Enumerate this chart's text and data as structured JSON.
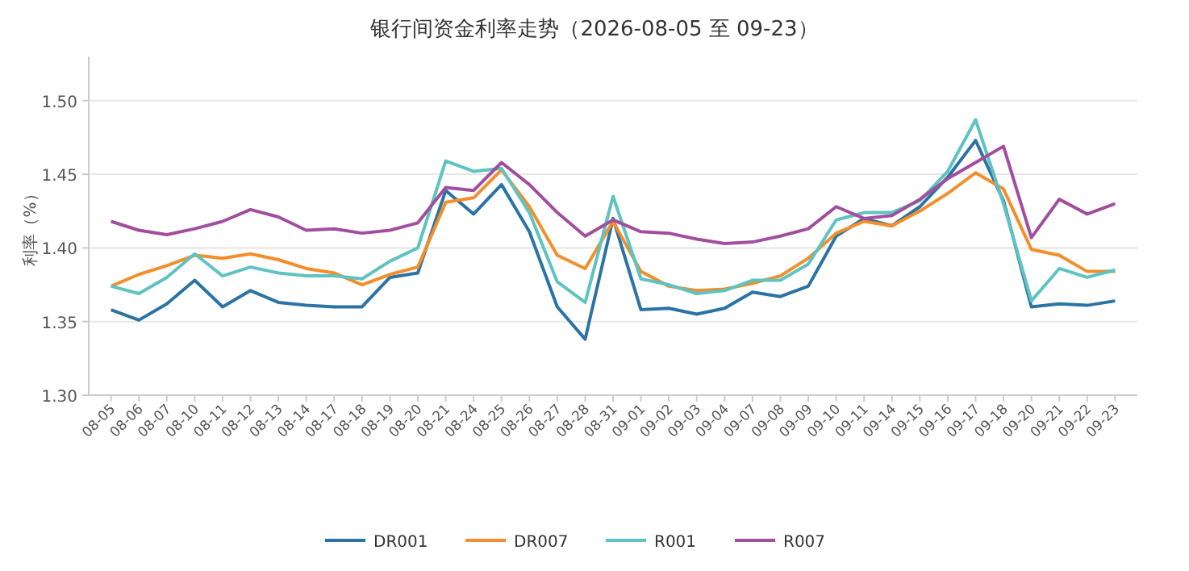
{
  "chart_data": {
    "type": "line",
    "title": "银行间资金利率走势（2026-08-05 至 09-23）",
    "ylabel": "利率（%）",
    "categories": [
      "08-05",
      "08-06",
      "08-07",
      "08-10",
      "08-11",
      "08-12",
      "08-13",
      "08-14",
      "08-17",
      "08-18",
      "08-19",
      "08-20",
      "08-21",
      "08-24",
      "08-25",
      "08-26",
      "08-27",
      "08-28",
      "08-31",
      "09-01",
      "09-02",
      "09-03",
      "09-04",
      "09-07",
      "09-08",
      "09-09",
      "09-10",
      "09-11",
      "09-14",
      "09-15",
      "09-16",
      "09-17",
      "09-18",
      "09-20",
      "09-21",
      "09-22",
      "09-23"
    ],
    "series": [
      {
        "name": "DR001",
        "color": "#2b73a5",
        "values": [
          1.358,
          1.351,
          1.362,
          1.378,
          1.36,
          1.371,
          1.363,
          1.361,
          1.36,
          1.36,
          1.38,
          1.383,
          1.439,
          1.423,
          1.443,
          1.411,
          1.36,
          1.338,
          1.42,
          1.358,
          1.359,
          1.355,
          1.359,
          1.37,
          1.367,
          1.374,
          1.408,
          1.42,
          1.415,
          1.428,
          1.448,
          1.473,
          1.432,
          1.36,
          1.362,
          1.361,
          1.364
        ]
      },
      {
        "name": "DR007",
        "color": "#f28e2b",
        "values": [
          1.374,
          1.382,
          1.388,
          1.395,
          1.393,
          1.396,
          1.392,
          1.386,
          1.383,
          1.375,
          1.382,
          1.387,
          1.431,
          1.434,
          1.453,
          1.428,
          1.395,
          1.386,
          1.418,
          1.384,
          1.374,
          1.371,
          1.372,
          1.376,
          1.381,
          1.393,
          1.41,
          1.418,
          1.415,
          1.425,
          1.437,
          1.451,
          1.44,
          1.399,
          1.395,
          1.384,
          1.384
        ]
      },
      {
        "name": "R001",
        "color": "#5ec3c1",
        "values": [
          1.374,
          1.369,
          1.38,
          1.396,
          1.381,
          1.387,
          1.383,
          1.381,
          1.381,
          1.379,
          1.391,
          1.4,
          1.459,
          1.452,
          1.454,
          1.424,
          1.377,
          1.363,
          1.435,
          1.379,
          1.375,
          1.369,
          1.371,
          1.378,
          1.378,
          1.389,
          1.419,
          1.424,
          1.424,
          1.432,
          1.452,
          1.487,
          1.43,
          1.364,
          1.386,
          1.38,
          1.385
        ]
      },
      {
        "name": "R007",
        "color": "#a24e9f",
        "values": [
          1.418,
          1.412,
          1.409,
          1.413,
          1.418,
          1.426,
          1.421,
          1.412,
          1.413,
          1.41,
          1.412,
          1.417,
          1.441,
          1.439,
          1.458,
          1.443,
          1.424,
          1.408,
          1.419,
          1.411,
          1.41,
          1.406,
          1.403,
          1.404,
          1.408,
          1.413,
          1.428,
          1.42,
          1.422,
          1.433,
          1.447,
          1.458,
          1.469,
          1.407,
          1.433,
          1.423,
          1.43
        ]
      }
    ],
    "ylim": [
      1.3,
      1.53
    ],
    "yticks": [
      {
        "value": 1.3,
        "label": "1.30"
      },
      {
        "value": 1.35,
        "label": "1.35"
      },
      {
        "value": 1.4,
        "label": "1.40"
      },
      {
        "value": 1.45,
        "label": "1.45"
      },
      {
        "value": 1.5,
        "label": "1.50"
      }
    ],
    "grid": "y",
    "legend": "bottom",
    "marker": "none",
    "line_style": "solid"
  }
}
